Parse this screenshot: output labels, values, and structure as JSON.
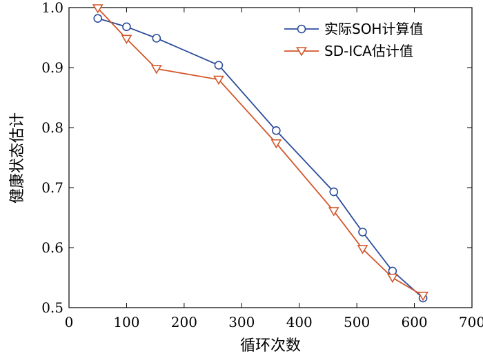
{
  "chart_data": {
    "type": "line",
    "xlabel": "循环次数",
    "ylabel": "健康状态估计",
    "xlim": [
      0,
      700
    ],
    "ylim": [
      0.5,
      1.0
    ],
    "xticks": [
      0,
      100,
      200,
      300,
      400,
      500,
      600,
      700
    ],
    "yticks": [
      0.5,
      0.6,
      0.7,
      0.8,
      0.9,
      1.0
    ],
    "xtick_labels": [
      "0",
      "100",
      "200",
      "300",
      "400",
      "500",
      "600",
      "700"
    ],
    "ytick_labels": [
      "0.5",
      "0.6",
      "0.7",
      "0.8",
      "0.9",
      "1.0"
    ],
    "grid": false,
    "legend_position": "top-right",
    "series": [
      {
        "name": "实际SOH计算值",
        "color": "#2b4c9b",
        "marker": "circle",
        "x": [
          50,
          100,
          152,
          260,
          360,
          460,
          510,
          562,
          615
        ],
        "y": [
          0.982,
          0.968,
          0.949,
          0.904,
          0.795,
          0.693,
          0.626,
          0.561,
          0.516
        ]
      },
      {
        "name": "SD-ICA估计值",
        "color": "#d2562a",
        "marker": "triangle-down",
        "x": [
          50,
          100,
          152,
          260,
          360,
          460,
          510,
          562,
          615
        ],
        "y": [
          0.999,
          0.948,
          0.898,
          0.88,
          0.774,
          0.661,
          0.598,
          0.55,
          0.52
        ]
      }
    ]
  }
}
